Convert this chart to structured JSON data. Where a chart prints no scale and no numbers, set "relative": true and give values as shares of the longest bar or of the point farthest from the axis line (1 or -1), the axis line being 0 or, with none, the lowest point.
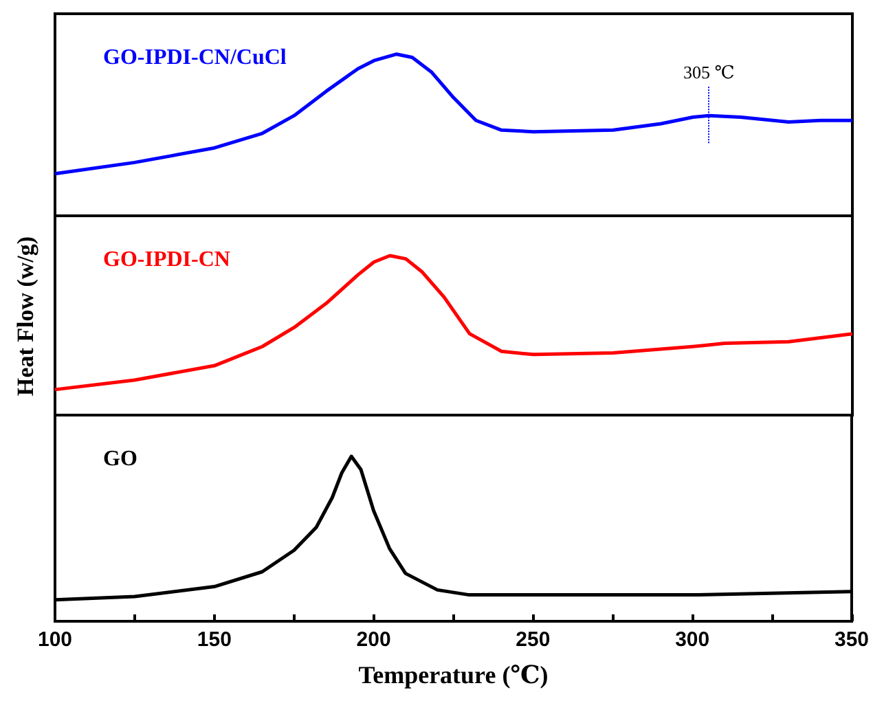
{
  "chart_data": [
    {
      "type": "line",
      "relative": true,
      "xlim": [
        100,
        350
      ],
      "tick_labels": false,
      "legend": false,
      "x": [
        100,
        125,
        150,
        165,
        175,
        185,
        195,
        200,
        207,
        212,
        218,
        225,
        232,
        240,
        250,
        275,
        290,
        300,
        305,
        315,
        330,
        340,
        350
      ],
      "series": [
        {
          "name": "GO-IPDI-CN/CuCl",
          "color": "#0000ff",
          "values": [
            0.26,
            0.33,
            0.42,
            0.51,
            0.62,
            0.77,
            0.91,
            0.96,
            1,
            0.98,
            0.89,
            0.73,
            0.59,
            0.53,
            0.52,
            0.53,
            0.57,
            0.61,
            0.62,
            0.61,
            0.58,
            0.59,
            0.59
          ]
        }
      ],
      "ref_lines": [
        {
          "axis": "x",
          "value": 305,
          "label": "305 ℃",
          "color": "#0000ff",
          "line_style": "dotted"
        }
      ]
    },
    {
      "type": "line",
      "relative": true,
      "xlim": [
        100,
        350
      ],
      "tick_labels": false,
      "legend": false,
      "ylabel": "Heat Flow (w/g)",
      "x": [
        100,
        125,
        150,
        165,
        175,
        185,
        195,
        200,
        205,
        210,
        215,
        222,
        230,
        240,
        250,
        275,
        300,
        310,
        330,
        350
      ],
      "series": [
        {
          "name": "GO-IPDI-CN",
          "color": "#ff0000",
          "values": [
            0.16,
            0.22,
            0.31,
            0.43,
            0.55,
            0.7,
            0.88,
            0.96,
            1,
            0.98,
            0.9,
            0.74,
            0.51,
            0.4,
            0.38,
            0.39,
            0.43,
            0.45,
            0.46,
            0.51
          ]
        }
      ]
    },
    {
      "type": "line",
      "relative": true,
      "xlim": [
        100,
        350
      ],
      "tick_labels": "x",
      "legend": false,
      "xlabel": "Temperature (℃)",
      "xticks": [
        100,
        {
          "value": 125,
          "label": null
        },
        150,
        {
          "value": 175,
          "label": null
        },
        200,
        {
          "value": 225,
          "label": null
        },
        250,
        {
          "value": 275,
          "label": null
        },
        300,
        {
          "value": 325,
          "label": null
        },
        350
      ],
      "x": [
        100,
        125,
        150,
        165,
        175,
        182,
        187,
        190,
        193,
        196,
        200,
        205,
        210,
        220,
        230,
        250,
        300,
        350
      ],
      "series": [
        {
          "name": "GO",
          "color": "#000000",
          "values": [
            0.13,
            0.15,
            0.21,
            0.3,
            0.43,
            0.57,
            0.75,
            0.9,
            1,
            0.92,
            0.67,
            0.44,
            0.29,
            0.19,
            0.16,
            0.16,
            0.16,
            0.18
          ]
        }
      ]
    }
  ]
}
